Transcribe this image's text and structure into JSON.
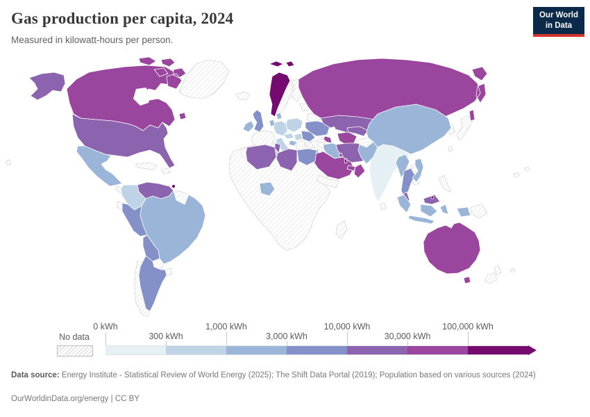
{
  "header": {
    "title": "Gas production per capita, 2024",
    "subtitle": "Measured in kilowatt-hours per person."
  },
  "logo": {
    "line1": "Our World",
    "line2": "in Data",
    "bg_color": "#0b2948",
    "accent_color": "#d1352b"
  },
  "chart_data": {
    "type": "heatmap",
    "title": "Gas production per capita, 2024",
    "unit": "kilowatt-hours per person",
    "year": "2024",
    "bin_edges": [
      "0 kWh",
      "300 kWh",
      "1,000 kWh",
      "3,000 kWh",
      "10,000 kWh",
      "30,000 kWh",
      "100,000 kWh"
    ],
    "bin_colors": [
      "#e4f0f4",
      "#bed3e5",
      "#9ab5d7",
      "#8391c8",
      "#8c63ae",
      "#9a469e",
      "#750b70"
    ],
    "no_data": {
      "label": "No data",
      "pattern": "diagonal-hatch",
      "line_color": "#d6d6d6",
      "border_color": "#c9c9c9"
    },
    "regions": [
      {
        "id": "greenland",
        "bin": null
      },
      {
        "id": "canada",
        "bin": 5
      },
      {
        "id": "canada-islands",
        "bin": 5
      },
      {
        "id": "newfoundland",
        "bin": 5
      },
      {
        "id": "alaska",
        "bin": 4
      },
      {
        "id": "usa",
        "bin": 4
      },
      {
        "id": "mexico",
        "bin": 2
      },
      {
        "id": "central-america",
        "bin": null
      },
      {
        "id": "cuba",
        "bin": null
      },
      {
        "id": "hispaniola",
        "bin": null
      },
      {
        "id": "hawaii",
        "bin": null
      },
      {
        "id": "venezuela",
        "bin": 4
      },
      {
        "id": "trinidad",
        "bin": 6
      },
      {
        "id": "colombia",
        "bin": 1
      },
      {
        "id": "guyanas",
        "bin": null
      },
      {
        "id": "ecuador",
        "bin": null
      },
      {
        "id": "brazil",
        "bin": 2
      },
      {
        "id": "peru",
        "bin": 3
      },
      {
        "id": "bolivia",
        "bin": 3
      },
      {
        "id": "paraguay",
        "bin": null
      },
      {
        "id": "uruguay",
        "bin": null
      },
      {
        "id": "argentina",
        "bin": 3
      },
      {
        "id": "chile",
        "bin": null
      },
      {
        "id": "iceland",
        "bin": null
      },
      {
        "id": "norway",
        "bin": 6
      },
      {
        "id": "svalbard",
        "bin": 6
      },
      {
        "id": "sweden",
        "bin": null
      },
      {
        "id": "finland",
        "bin": null
      },
      {
        "id": "baltics",
        "bin": null
      },
      {
        "id": "belarus",
        "bin": null
      },
      {
        "id": "uk",
        "bin": 3
      },
      {
        "id": "ireland",
        "bin": 2
      },
      {
        "id": "denmark",
        "bin": 2
      },
      {
        "id": "netherlands",
        "bin": 2
      },
      {
        "id": "germany",
        "bin": 1
      },
      {
        "id": "poland",
        "bin": 1
      },
      {
        "id": "czechia",
        "bin": null
      },
      {
        "id": "france",
        "bin": null
      },
      {
        "id": "spain",
        "bin": null
      },
      {
        "id": "italy",
        "bin": 1
      },
      {
        "id": "austria",
        "bin": 1
      },
      {
        "id": "hungary",
        "bin": 1
      },
      {
        "id": "croatia",
        "bin": 2
      },
      {
        "id": "balkans",
        "bin": null
      },
      {
        "id": "bulgaria",
        "bin": null
      },
      {
        "id": "greece",
        "bin": null
      },
      {
        "id": "romania",
        "bin": 3
      },
      {
        "id": "ukraine",
        "bin": 3
      },
      {
        "id": "turkey",
        "bin": null
      },
      {
        "id": "russia",
        "bin": 5
      },
      {
        "id": "kazakhstan",
        "bin": 4
      },
      {
        "id": "uzbekistan",
        "bin": 4
      },
      {
        "id": "turkmenistan",
        "bin": 5
      },
      {
        "id": "kyrgyz-tajik",
        "bin": null
      },
      {
        "id": "georgia",
        "bin": null
      },
      {
        "id": "azerbaijan",
        "bin": 5
      },
      {
        "id": "iran",
        "bin": 4
      },
      {
        "id": "iraq",
        "bin": 2
      },
      {
        "id": "syria",
        "bin": null
      },
      {
        "id": "israel",
        "bin": 2
      },
      {
        "id": "saudi-arabia",
        "bin": 5
      },
      {
        "id": "kuwait",
        "bin": 5
      },
      {
        "id": "qatar",
        "bin": 6
      },
      {
        "id": "uae",
        "bin": 5
      },
      {
        "id": "oman",
        "bin": 5
      },
      {
        "id": "yemen",
        "bin": null
      },
      {
        "id": "africa-other",
        "bin": null
      },
      {
        "id": "algeria",
        "bin": 4
      },
      {
        "id": "tunisia",
        "bin": 4
      },
      {
        "id": "libya",
        "bin": 4
      },
      {
        "id": "egypt",
        "bin": 3
      },
      {
        "id": "nigeria",
        "bin": 2
      },
      {
        "id": "madagascar",
        "bin": null
      },
      {
        "id": "afghanistan",
        "bin": null
      },
      {
        "id": "pakistan",
        "bin": 2
      },
      {
        "id": "india",
        "bin": 0
      },
      {
        "id": "sri-lanka",
        "bin": null
      },
      {
        "id": "nepal",
        "bin": null
      },
      {
        "id": "bangladesh",
        "bin": 2
      },
      {
        "id": "china",
        "bin": 2
      },
      {
        "id": "mongolia",
        "bin": null
      },
      {
        "id": "korea",
        "bin": null
      },
      {
        "id": "japan",
        "bin": null
      },
      {
        "id": "taiwan",
        "bin": null
      },
      {
        "id": "myanmar",
        "bin": 2
      },
      {
        "id": "thailand",
        "bin": 3
      },
      {
        "id": "laos",
        "bin": null
      },
      {
        "id": "vietnam",
        "bin": 2
      },
      {
        "id": "cambodia",
        "bin": null
      },
      {
        "id": "malaysia",
        "bin": 4
      },
      {
        "id": "brunei",
        "bin": 6
      },
      {
        "id": "indonesia",
        "bin": 2
      },
      {
        "id": "philippines",
        "bin": null
      },
      {
        "id": "papua-new-guinea",
        "bin": null
      },
      {
        "id": "australia",
        "bin": 5
      },
      {
        "id": "new-zealand",
        "bin": null
      },
      {
        "id": "pacific-islands",
        "bin": null
      }
    ]
  },
  "legend": {
    "no_data_label": "No data",
    "ticks": [
      {
        "label": "0 kWh",
        "pos": 0,
        "row": "top"
      },
      {
        "label": "300 kWh",
        "pos": 1,
        "row": "bottom"
      },
      {
        "label": "1,000 kWh",
        "pos": 2,
        "row": "top"
      },
      {
        "label": "3,000 kWh",
        "pos": 3,
        "row": "bottom"
      },
      {
        "label": "10,000 kWh",
        "pos": 4,
        "row": "top"
      },
      {
        "label": "30,000 kWh",
        "pos": 5,
        "row": "bottom"
      },
      {
        "label": "100,000 kWh",
        "pos": 6,
        "row": "top"
      }
    ]
  },
  "footer": {
    "source_label": "Data source:",
    "source_text": " Energy Institute - Statistical Review of World Energy (2025); The Shift Data Portal (2019); Population based on various sources (2024)",
    "link": "OurWorldinData.org/energy",
    "separator": " | ",
    "license": "CC BY"
  }
}
